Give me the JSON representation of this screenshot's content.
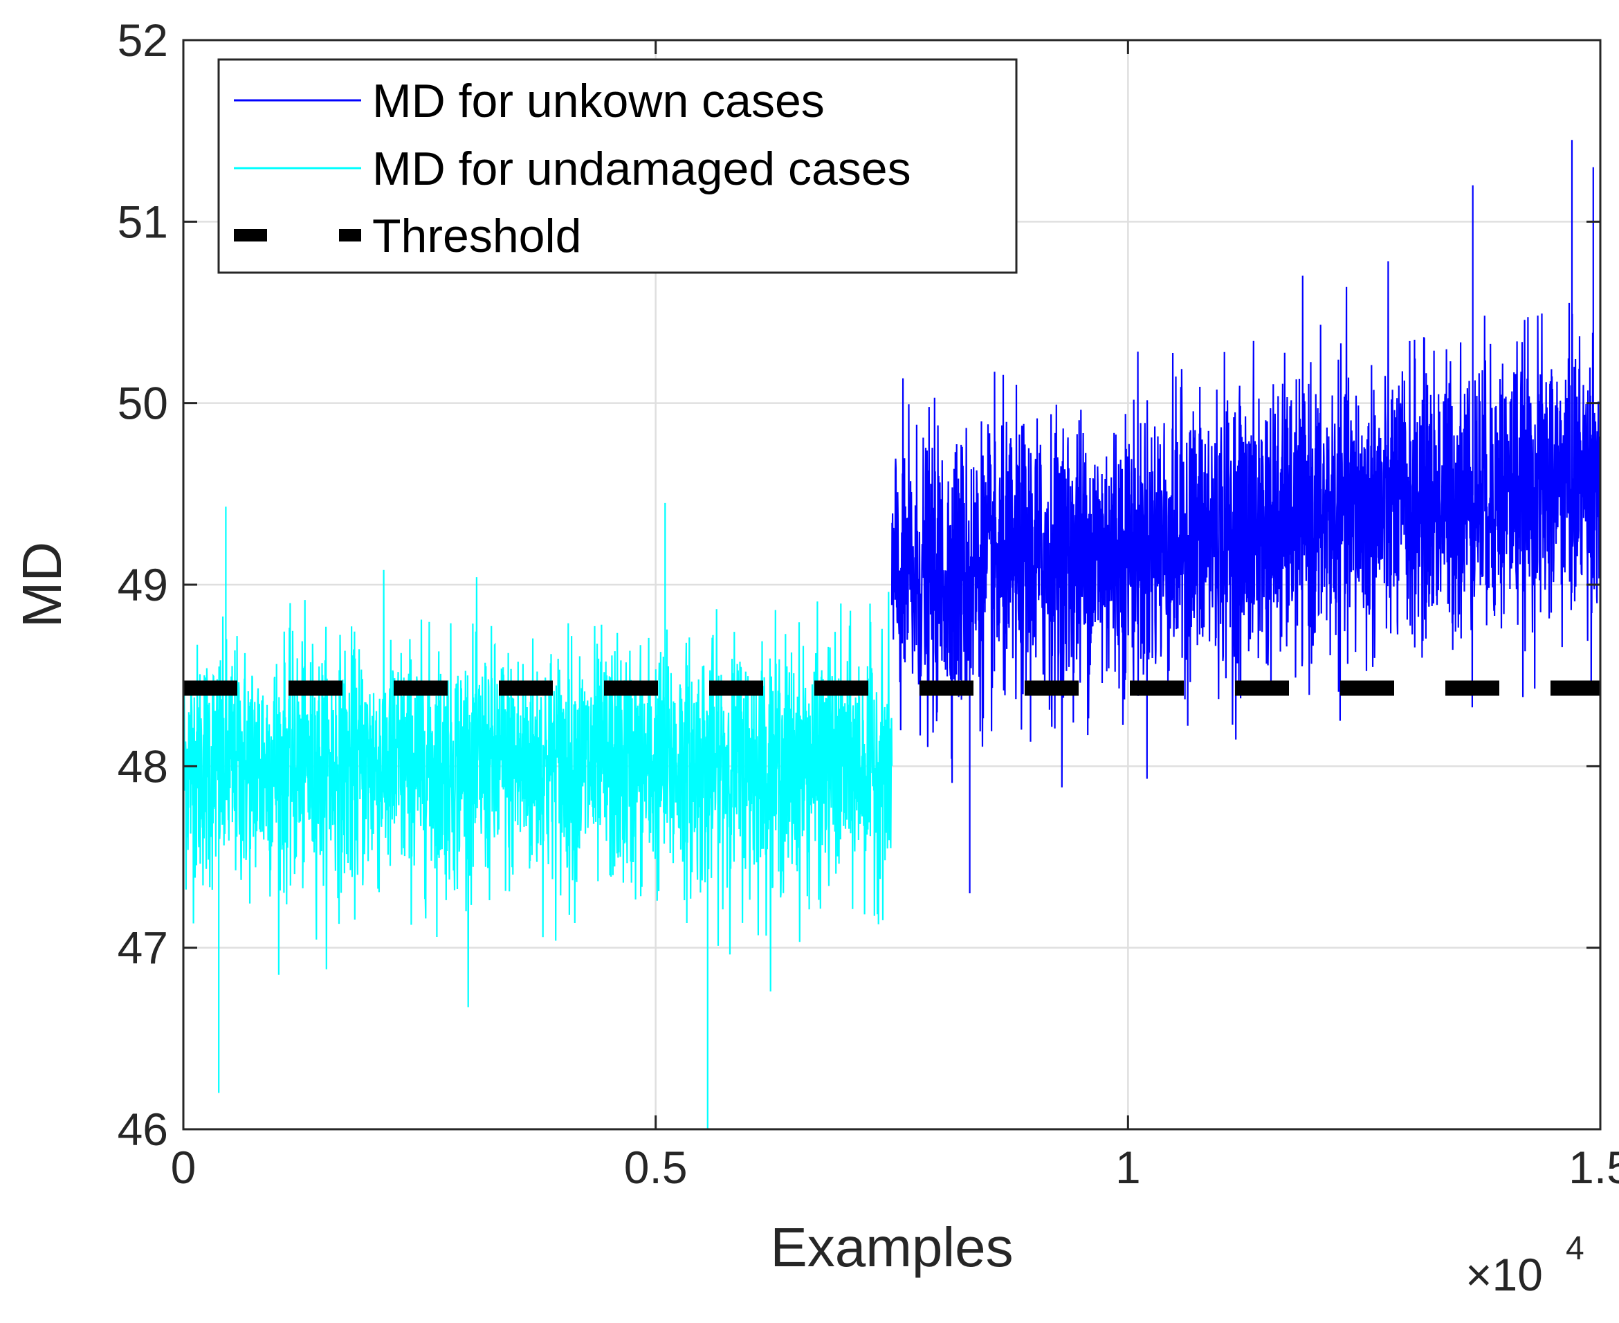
{
  "colors": {
    "unknown": "#0000ff",
    "undamaged": "#00ffff",
    "threshold": "#000000",
    "grid": "#dfdfdf",
    "axis": "#262626"
  },
  "chart_data": {
    "type": "line",
    "title": "",
    "xlabel": "Examples",
    "ylabel": "MD",
    "x_exponent": "×10",
    "x_exponent_power": "4",
    "xlim": [
      0,
      1.5
    ],
    "ylim": [
      46,
      52
    ],
    "x_ticks": [
      "0",
      "0.5",
      "1",
      "1.5"
    ],
    "y_ticks": [
      "46",
      "47",
      "48",
      "49",
      "50",
      "51",
      "52"
    ],
    "x_tick_values": [
      0,
      0.5,
      1,
      1.5
    ],
    "y_tick_values": [
      46,
      47,
      48,
      49,
      50,
      51,
      52
    ],
    "grid": true,
    "legend_position": "top-left",
    "series": [
      {
        "name": "MD for unkown cases",
        "style": "solid",
        "x_range": [
          0.75,
          1.5
        ],
        "mean_start": 49.0,
        "mean_end": 49.6,
        "noise_std": 0.38,
        "min_observed": 47.3,
        "max_observed": 51.45
      },
      {
        "name": "MD for undamaged cases",
        "style": "solid",
        "x_range": [
          0,
          0.75
        ],
        "mean_start": 48.0,
        "mean_end": 48.0,
        "noise_std": 0.33,
        "min_observed": 46.0,
        "max_observed": 49.45
      },
      {
        "name": "Threshold",
        "style": "dashed",
        "x": [
          0,
          1.5
        ],
        "values": [
          48.43,
          48.43
        ]
      }
    ]
  }
}
